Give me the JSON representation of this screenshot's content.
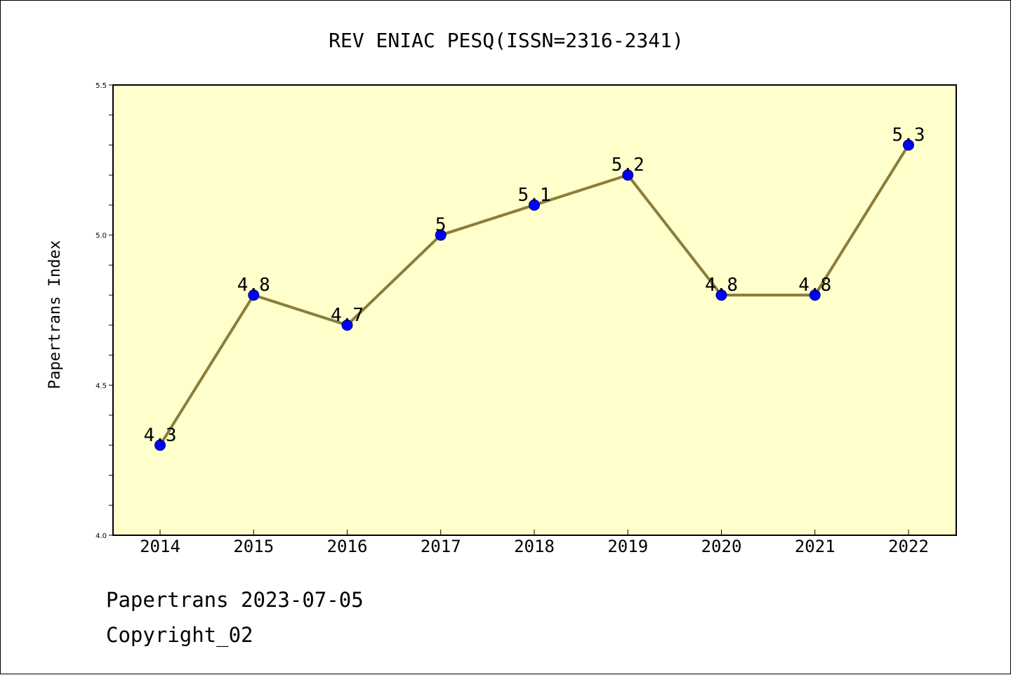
{
  "chart_data": {
    "type": "line",
    "title": "REV ENIAC PESQ(ISSN=2316-2341)",
    "xlabel": "",
    "ylabel": "Papertrans Index",
    "categories": [
      "2014",
      "2015",
      "2016",
      "2017",
      "2018",
      "2019",
      "2020",
      "2021",
      "2022"
    ],
    "values": [
      4.3,
      4.8,
      4.7,
      5.0,
      5.1,
      5.2,
      4.8,
      4.8,
      5.3
    ],
    "data_labels": [
      "4.3",
      "4.8",
      "4.7",
      "5",
      "5.1",
      "5.2",
      "4.8",
      "4.8",
      "5.3"
    ],
    "ylim": [
      4.0,
      5.5
    ],
    "yticks": [
      "4.0",
      "4.5",
      "5.0",
      "5.5"
    ],
    "grid": false,
    "colors": {
      "plot_background": "#ffffcc",
      "line": "#8b7d3a",
      "marker": "#0000ff"
    }
  },
  "footer": {
    "line1": "Papertrans 2023-07-05",
    "line2": "Copyright_02"
  }
}
